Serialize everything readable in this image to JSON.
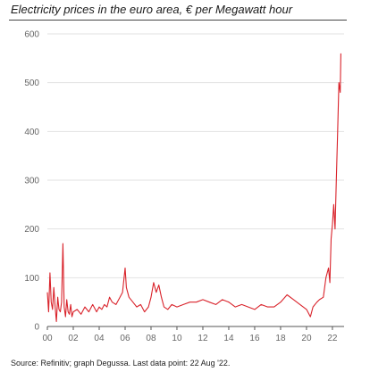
{
  "chart_data": {
    "type": "line",
    "title": "Electricity prices in the euro area, € per Megawatt hour",
    "xlabel": "",
    "ylabel": "",
    "x_ticks": [
      "00",
      "02",
      "04",
      "06",
      "08",
      "10",
      "12",
      "14",
      "16",
      "18",
      "20",
      "22"
    ],
    "y_ticks": [
      0,
      100,
      200,
      300,
      400,
      500,
      600
    ],
    "xlim": [
      2000,
      2022.9
    ],
    "ylim": [
      0,
      600
    ],
    "grid": "horizontal",
    "line_color": "#d9232b",
    "series": [
      {
        "x": [
          2000.0,
          2000.1,
          2000.2,
          2000.3,
          2000.4,
          2000.5,
          2000.6,
          2000.7,
          2000.8,
          2000.9,
          2001.0,
          2001.1,
          2001.2,
          2001.3,
          2001.4,
          2001.5,
          2001.6,
          2001.7,
          2001.8,
          2001.9,
          2002.0,
          2002.3,
          2002.6,
          2002.9,
          2003.2,
          2003.5,
          2003.8,
          2004.0,
          2004.2,
          2004.4,
          2004.6,
          2004.8,
          2005.0,
          2005.3,
          2005.6,
          2005.8,
          2006.0,
          2006.1,
          2006.3,
          2006.6,
          2006.9,
          2007.2,
          2007.5,
          2007.8,
          2008.0,
          2008.2,
          2008.4,
          2008.6,
          2008.8,
          2009.0,
          2009.3,
          2009.6,
          2010.0,
          2010.5,
          2011.0,
          2011.5,
          2012.0,
          2012.5,
          2013.0,
          2013.5,
          2014.0,
          2014.5,
          2015.0,
          2015.5,
          2016.0,
          2016.5,
          2017.0,
          2017.5,
          2018.0,
          2018.5,
          2019.0,
          2019.5,
          2020.0,
          2020.3,
          2020.5,
          2020.8,
          2021.0,
          2021.3,
          2021.5,
          2021.7,
          2021.8,
          2021.9,
          2022.0,
          2022.1,
          2022.2,
          2022.3,
          2022.4,
          2022.5,
          2022.6,
          2022.65
        ],
        "values": [
          70,
          30,
          110,
          50,
          35,
          80,
          40,
          10,
          60,
          35,
          30,
          50,
          170,
          40,
          20,
          55,
          30,
          25,
          45,
          20,
          30,
          35,
          25,
          40,
          30,
          45,
          30,
          40,
          35,
          45,
          40,
          60,
          50,
          45,
          60,
          70,
          120,
          80,
          60,
          50,
          40,
          45,
          30,
          40,
          60,
          90,
          70,
          85,
          60,
          40,
          35,
          45,
          40,
          45,
          50,
          50,
          55,
          50,
          45,
          55,
          50,
          40,
          45,
          40,
          35,
          45,
          40,
          40,
          50,
          65,
          55,
          45,
          35,
          20,
          40,
          50,
          55,
          60,
          100,
          120,
          90,
          180,
          210,
          250,
          200,
          300,
          400,
          500,
          480,
          560
        ]
      }
    ]
  },
  "source": "Source: Refinitiv; graph Degussa. Last data point: 22 Aug '22."
}
